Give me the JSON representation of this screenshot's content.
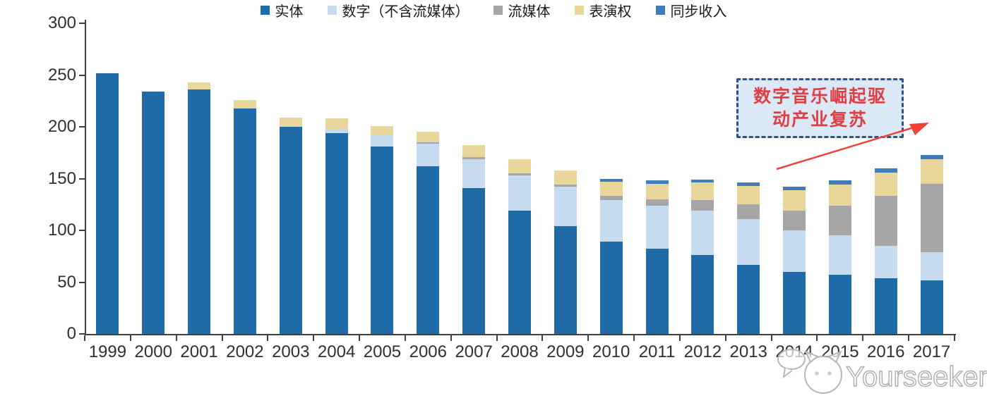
{
  "chart_data": {
    "type": "bar",
    "stacked": true,
    "title": "",
    "xlabel": "",
    "ylabel": "",
    "categories": [
      "1999",
      "2000",
      "2001",
      "2002",
      "2003",
      "2004",
      "2005",
      "2006",
      "2007",
      "2008",
      "2009",
      "2010",
      "2011",
      "2012",
      "2013",
      "2014",
      "2015",
      "2016",
      "2017"
    ],
    "series": [
      {
        "name": "实体",
        "color": "#1f6ba8",
        "values": [
          252,
          234,
          236,
          218,
          200,
          194,
          181,
          162,
          141,
          119,
          104,
          89,
          82,
          76,
          67,
          60,
          57,
          54,
          52
        ]
      },
      {
        "name": "数字（不含流媒体）",
        "color": "#c6daf0",
        "values": [
          0,
          0,
          0,
          0,
          1,
          4,
          11,
          22,
          28,
          34,
          38,
          40,
          42,
          43,
          44,
          40,
          38,
          31,
          27
        ]
      },
      {
        "name": "流媒体",
        "color": "#a6a6a6",
        "values": [
          0,
          0,
          0,
          0,
          0,
          0,
          0,
          1,
          2,
          2,
          2,
          4,
          6,
          10,
          14,
          19,
          29,
          48,
          66
        ]
      },
      {
        "name": "表演权",
        "color": "#e9d69a",
        "values": [
          0,
          0,
          7,
          8,
          8,
          10,
          9,
          10,
          11,
          14,
          14,
          14,
          15,
          17,
          18,
          20,
          20,
          23,
          24
        ]
      },
      {
        "name": "同步收入",
        "color": "#3e7dba",
        "values": [
          0,
          0,
          0,
          0,
          0,
          0,
          0,
          0,
          0,
          0,
          0,
          3,
          3,
          3,
          3,
          3,
          4,
          4,
          4
        ]
      }
    ],
    "ylim": [
      0,
      300
    ],
    "yticks": [
      0,
      50,
      100,
      150,
      200,
      250,
      300
    ],
    "grid": false,
    "legend_position": "bottom"
  },
  "annotation": {
    "line1": "数字音乐崛起驱",
    "line2": "动产业复苏",
    "box_fill": "#dbe8f6",
    "box_border_color": "#2f508e",
    "text_color": "#de3f44",
    "arrow_color": "#ee4238"
  },
  "watermark": {
    "text": "Yourseeker",
    "color": "#b0b0b0"
  },
  "axis_color": "#3f3f3f"
}
